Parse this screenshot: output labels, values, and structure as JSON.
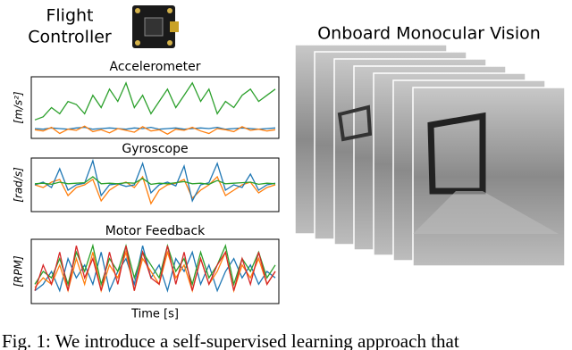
{
  "flight_controller_label": [
    "Flight",
    "Controller"
  ],
  "vision_title": "Onboard Monocular Vision",
  "caption": "Fig. 1: We introduce a self-supervised learning approach that",
  "chart_data": [
    {
      "type": "line",
      "title": "Accelerometer",
      "y_label": "[m/s²]",
      "ylim": [
        0,
        10
      ],
      "series": [
        {
          "color": "#2ca02c",
          "values": [
            3,
            3.5,
            5,
            4,
            6,
            5.5,
            4,
            7,
            5,
            8,
            6,
            9,
            5,
            7,
            4,
            6,
            8,
            5,
            7,
            9,
            6,
            8,
            4,
            6,
            5,
            7,
            8,
            6,
            7,
            8
          ]
        },
        {
          "color": "#1f77b4",
          "values": [
            1.6,
            1.5,
            1.7,
            1.6,
            1.5,
            1.7,
            1.8,
            1.5,
            1.6,
            1.7,
            1.6,
            1.5,
            1.7,
            1.6,
            1.8,
            1.5,
            1.6,
            1.7,
            1.5,
            1.6,
            1.7,
            1.6,
            1.8,
            1.5,
            1.6,
            1.7,
            1.6,
            1.5,
            1.6,
            1.7
          ]
        },
        {
          "color": "#ff7f0e",
          "values": [
            1.4,
            1.2,
            1.8,
            0.8,
            1.5,
            1.3,
            2.0,
            1.1,
            1.4,
            0.9,
            1.6,
            1.3,
            1.0,
            1.9,
            1.2,
            1.4,
            0.7,
            1.5,
            1.3,
            1.8,
            1.2,
            0.8,
            1.6,
            1.4,
            1.1,
            1.9,
            1.3,
            1.5,
            1.2,
            1.4
          ]
        }
      ]
    },
    {
      "type": "line",
      "title": "Gyroscope",
      "y_label": "[rad/s]",
      "ylim": [
        -5,
        5
      ],
      "series": [
        {
          "color": "#ff7f0e",
          "values": [
            0,
            -0.5,
            0.5,
            1,
            -2,
            -0.5,
            0,
            1,
            -3,
            -1,
            0,
            0.5,
            -0.5,
            1.5,
            -3.5,
            -1,
            0,
            0.3,
            1,
            -2.5,
            -1,
            0,
            1.5,
            -2,
            -1,
            0,
            0.5,
            -1.5,
            -0.5,
            0
          ]
        },
        {
          "color": "#1f77b4",
          "values": [
            0,
            0.5,
            -0.5,
            3,
            -1,
            0,
            0.3,
            4.5,
            -2,
            0,
            0.2,
            -0.3,
            0,
            4,
            -1.5,
            0,
            0.5,
            -0.2,
            3.5,
            -3,
            0,
            0.4,
            4,
            -1,
            0,
            -0.5,
            2,
            -1,
            0,
            0.3
          ]
        },
        {
          "color": "#2ca02c",
          "values": [
            0.2,
            0.3,
            0.1,
            0.5,
            0.2,
            0.3,
            0.4,
            1.5,
            0.2,
            0.3,
            0.2,
            0.4,
            0.3,
            1.2,
            0.1,
            0.3,
            0.2,
            0.4,
            0.6,
            0.2,
            0.3,
            0.1,
            0.8,
            0.2,
            0.3,
            0.4,
            0.5,
            0.1,
            0.3,
            0.2
          ]
        }
      ]
    },
    {
      "type": "line",
      "title": "Motor Feedback",
      "y_label": "[RPM]",
      "x_label": "Time [s]",
      "ylim": [
        0,
        10
      ],
      "series": [
        {
          "color": "#1f77b4",
          "values": [
            2,
            3,
            5,
            2,
            7,
            4,
            6,
            3,
            8,
            2,
            5,
            7,
            3,
            9,
            4,
            6,
            2,
            7,
            5,
            8,
            3,
            6,
            2,
            5,
            7,
            4,
            6,
            3,
            5,
            4
          ]
        },
        {
          "color": "#ff7f0e",
          "values": [
            2.5,
            4,
            3,
            6,
            2,
            7,
            3,
            8,
            2,
            6,
            4,
            8,
            2,
            7,
            5,
            3,
            8,
            4,
            6,
            2,
            7,
            3,
            5,
            8,
            2,
            6,
            4,
            7,
            3,
            5
          ]
        },
        {
          "color": "#2ca02c",
          "values": [
            3,
            5,
            4,
            7,
            3,
            8,
            5,
            9,
            3,
            7,
            5,
            9,
            4,
            8,
            6,
            4,
            9,
            5,
            7,
            3,
            8,
            4,
            6,
            9,
            3,
            7,
            5,
            8,
            4,
            6
          ]
        },
        {
          "color": "#d62728",
          "values": [
            2,
            6,
            3,
            8,
            2,
            9,
            4,
            7,
            2,
            8,
            3,
            9,
            2,
            8,
            4,
            3,
            9,
            3,
            8,
            2,
            7,
            3,
            6,
            8,
            2,
            7,
            3,
            8,
            3,
            5
          ]
        }
      ]
    }
  ]
}
